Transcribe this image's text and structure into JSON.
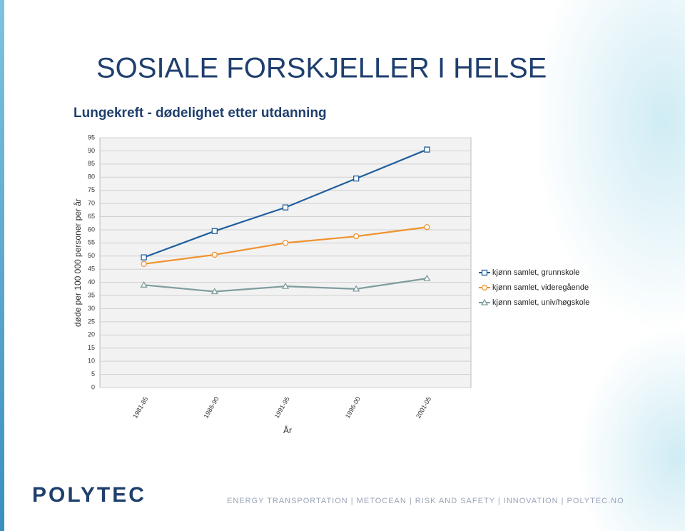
{
  "slide": {
    "title": "SOSIALE FORSKJELLER I HELSE",
    "subtitle": "Lungekreft - dødelighet etter utdanning",
    "logo": "POLYTEC",
    "footer": "ENERGY TRANSPORTATION | METOCEAN | RISK AND SAFETY | INNOVATION | POLYTEC.NO"
  },
  "chart_data": {
    "type": "line",
    "x_label": "År",
    "y_label": "døde per 100 000 personer per år",
    "categories": [
      "1981-85",
      "1986-90",
      "1991-95",
      "1996-00",
      "2001-05"
    ],
    "series": [
      {
        "name": "kjønn samlet, grunnskole",
        "color": "#1f5f9e",
        "marker": "square",
        "values": [
          49.5,
          59.5,
          68.5,
          79.5,
          90.5
        ]
      },
      {
        "name": "kjønn samlet, videregående",
        "color": "#f0922e",
        "marker": "circle",
        "values": [
          47,
          50.5,
          55,
          57.5,
          61
        ]
      },
      {
        "name": "kjønn samlet, univ/høgskole",
        "color": "#7f9c9e",
        "marker": "triangle",
        "values": [
          39,
          36.5,
          38.5,
          37.5,
          41.5
        ]
      }
    ],
    "ylim": [
      0,
      95
    ],
    "yticks": [
      0,
      5,
      10,
      15,
      20,
      25,
      30,
      35,
      40,
      45,
      50,
      55,
      60,
      65,
      70,
      75,
      80,
      85,
      90,
      95
    ],
    "grid": true,
    "legend": "right"
  }
}
